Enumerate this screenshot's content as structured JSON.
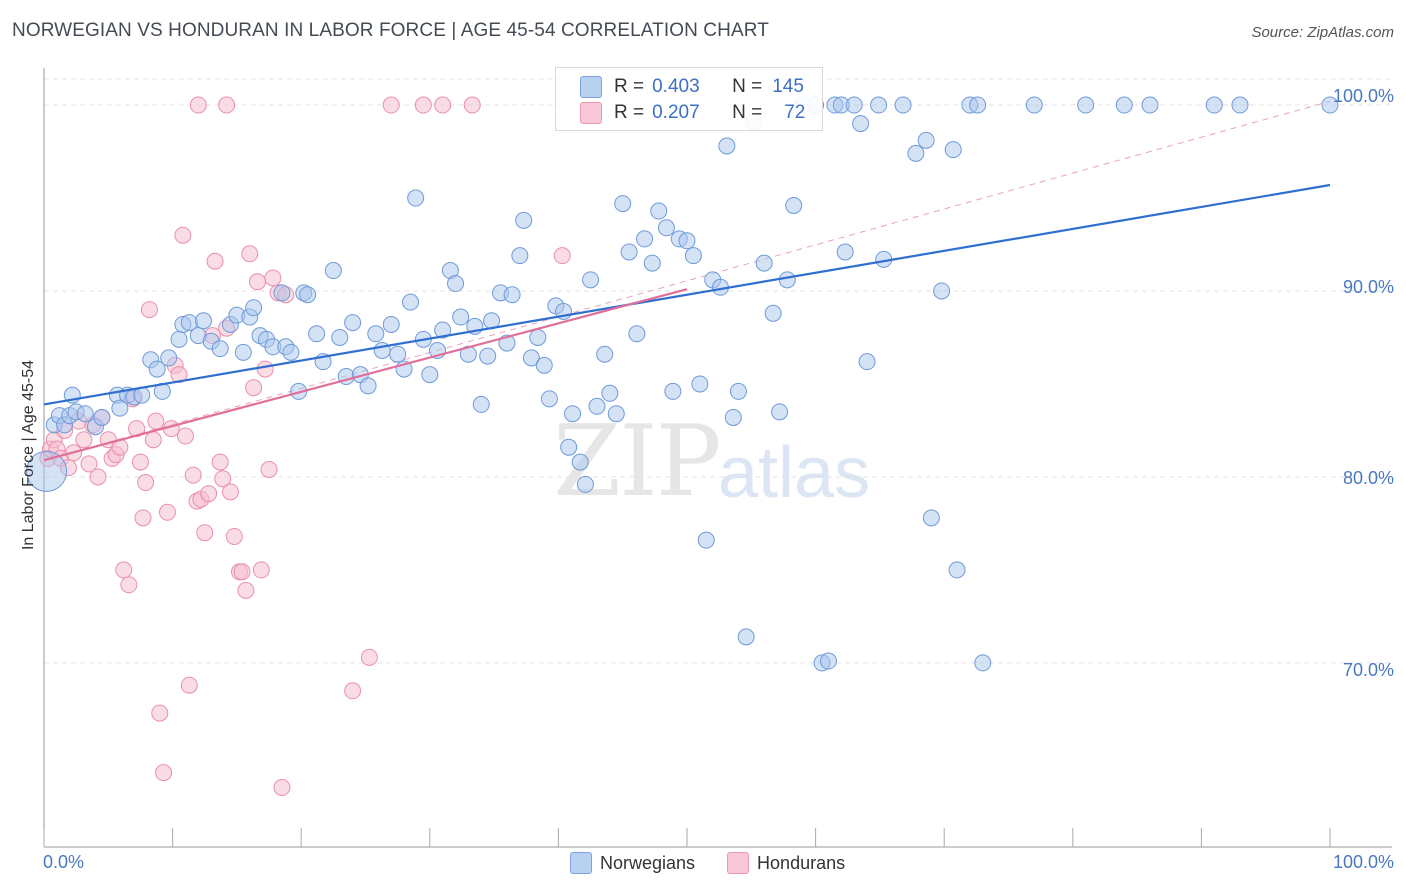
{
  "title": "NORWEGIAN VS HONDURAN IN LABOR FORCE | AGE 45-54 CORRELATION CHART",
  "source": "Source: ZipAtlas.com",
  "watermark": {
    "zip": "ZIP",
    "atlas": "atlas"
  },
  "colors": {
    "norwegian_fill": "#a9c6ee",
    "norwegian_stroke": "#6f9ad8",
    "norwegian_line": "#2f6fd0",
    "honduran_fill": "#f6bfd0",
    "honduran_stroke": "#ea8fae",
    "honduran_line": "#e0709a",
    "diag": "#e8a3ba",
    "grid": "#e3e3e3",
    "tick_text": "#4a78c0"
  },
  "legend": {
    "rows": [
      {
        "r_label": "R =",
        "r_value": "0.403",
        "n_label": "N =",
        "n_value": "145"
      },
      {
        "r_label": "R =",
        "r_value": "0.207",
        "n_label": "N =",
        "n_value": "72"
      }
    ],
    "bottom": [
      "Norwegians",
      "Hondurans"
    ]
  },
  "chart_data": {
    "type": "scatter",
    "title": "NORWEGIAN VS HONDURAN IN LABOR FORCE | AGE 45-54 CORRELATION CHART",
    "xlabel": "",
    "ylabel": "In Labor Force | Age 45-54",
    "xlim": [
      0,
      100
    ],
    "ylim": [
      60.1,
      101.4
    ],
    "x_tick_labels": [
      "0.0%",
      "100.0%"
    ],
    "y_ticks": [
      70,
      80,
      90,
      100
    ],
    "y_tick_labels": [
      "70.0%",
      "80.0%",
      "90.0%",
      "100.0%"
    ],
    "grid": true,
    "legend_placement": "top-center",
    "series": [
      {
        "name": "Norwegians",
        "trend": {
          "x": [
            0,
            100
          ],
          "y": [
            83.9,
            95.7
          ]
        },
        "points": [
          [
            0.2,
            80.3
          ],
          [
            0.8,
            82.8
          ],
          [
            1.2,
            83.3
          ],
          [
            1.6,
            82.8
          ],
          [
            2.0,
            83.3
          ],
          [
            2.2,
            84.4
          ],
          [
            2.5,
            83.5
          ],
          [
            3.2,
            83.4
          ],
          [
            4.0,
            82.7
          ],
          [
            4.5,
            83.2
          ],
          [
            5.7,
            84.4
          ],
          [
            5.9,
            83.7
          ],
          [
            6.5,
            84.4
          ],
          [
            7.0,
            84.3
          ],
          [
            7.6,
            84.4
          ],
          [
            8.3,
            86.3
          ],
          [
            8.8,
            85.8
          ],
          [
            9.2,
            84.6
          ],
          [
            9.7,
            86.4
          ],
          [
            10.5,
            87.4
          ],
          [
            10.8,
            88.2
          ],
          [
            11.3,
            88.3
          ],
          [
            12.0,
            87.6
          ],
          [
            12.4,
            88.4
          ],
          [
            13.0,
            87.3
          ],
          [
            13.7,
            86.9
          ],
          [
            14.5,
            88.2
          ],
          [
            15.0,
            88.7
          ],
          [
            15.5,
            86.7
          ],
          [
            16.0,
            88.6
          ],
          [
            16.3,
            89.1
          ],
          [
            16.8,
            87.6
          ],
          [
            17.3,
            87.4
          ],
          [
            17.8,
            87.0
          ],
          [
            18.5,
            89.9
          ],
          [
            18.8,
            87.0
          ],
          [
            19.2,
            86.7
          ],
          [
            19.8,
            84.6
          ],
          [
            20.2,
            89.9
          ],
          [
            20.5,
            89.8
          ],
          [
            21.2,
            87.7
          ],
          [
            21.7,
            86.2
          ],
          [
            22.5,
            91.1
          ],
          [
            23.0,
            87.5
          ],
          [
            23.5,
            85.4
          ],
          [
            24.0,
            88.3
          ],
          [
            24.6,
            85.5
          ],
          [
            25.2,
            84.9
          ],
          [
            25.8,
            87.7
          ],
          [
            26.3,
            86.8
          ],
          [
            27.0,
            88.2
          ],
          [
            27.5,
            86.6
          ],
          [
            28.0,
            85.8
          ],
          [
            28.5,
            89.4
          ],
          [
            28.9,
            95.0
          ],
          [
            29.5,
            87.4
          ],
          [
            30.0,
            85.5
          ],
          [
            30.6,
            86.8
          ],
          [
            31.0,
            87.9
          ],
          [
            31.6,
            91.1
          ],
          [
            32.0,
            90.4
          ],
          [
            32.4,
            88.6
          ],
          [
            33.0,
            86.6
          ],
          [
            33.5,
            88.1
          ],
          [
            34.0,
            83.9
          ],
          [
            34.5,
            86.5
          ],
          [
            34.8,
            88.4
          ],
          [
            35.5,
            89.9
          ],
          [
            36.0,
            87.2
          ],
          [
            36.4,
            89.8
          ],
          [
            37.0,
            91.9
          ],
          [
            37.3,
            93.8
          ],
          [
            37.9,
            86.4
          ],
          [
            38.4,
            87.5
          ],
          [
            38.9,
            86.0
          ],
          [
            39.3,
            84.2
          ],
          [
            39.8,
            89.2
          ],
          [
            40.4,
            88.9
          ],
          [
            40.8,
            81.6
          ],
          [
            41.1,
            83.4
          ],
          [
            41.7,
            80.8
          ],
          [
            42.1,
            79.6
          ],
          [
            42.5,
            90.6
          ],
          [
            43.0,
            83.8
          ],
          [
            43.6,
            86.6
          ],
          [
            44.0,
            84.5
          ],
          [
            44.5,
            83.4
          ],
          [
            45.0,
            94.7
          ],
          [
            45.5,
            92.1
          ],
          [
            46.1,
            87.7
          ],
          [
            46.7,
            92.8
          ],
          [
            47.3,
            91.5
          ],
          [
            47.8,
            94.3
          ],
          [
            48.4,
            93.4
          ],
          [
            48.9,
            84.6
          ],
          [
            49.4,
            92.8
          ],
          [
            50.0,
            92.7
          ],
          [
            50.5,
            91.9
          ],
          [
            51.0,
            85.0
          ],
          [
            51.5,
            76.6
          ],
          [
            52.0,
            90.6
          ],
          [
            52.6,
            90.2
          ],
          [
            53.1,
            97.8
          ],
          [
            53.6,
            83.2
          ],
          [
            54.0,
            84.6
          ],
          [
            54.6,
            71.4
          ],
          [
            55.2,
            99.1
          ],
          [
            56.0,
            91.5
          ],
          [
            56.7,
            88.8
          ],
          [
            57.2,
            83.5
          ],
          [
            57.8,
            90.6
          ],
          [
            58.3,
            94.6
          ],
          [
            59.0,
            100.0
          ],
          [
            60.0,
            100.0
          ],
          [
            60.5,
            70.0
          ],
          [
            61.0,
            70.1
          ],
          [
            61.5,
            100.0
          ],
          [
            62.0,
            100.0
          ],
          [
            62.3,
            92.1
          ],
          [
            63.0,
            100.0
          ],
          [
            63.5,
            99.0
          ],
          [
            64.0,
            86.2
          ],
          [
            64.9,
            100.0
          ],
          [
            65.3,
            91.7
          ],
          [
            66.8,
            100.0
          ],
          [
            67.8,
            97.4
          ],
          [
            68.6,
            98.1
          ],
          [
            69.0,
            77.8
          ],
          [
            69.8,
            90.0
          ],
          [
            70.7,
            97.6
          ],
          [
            71.0,
            75.0
          ],
          [
            72.0,
            100.0
          ],
          [
            72.6,
            100.0
          ],
          [
            73.0,
            70.0
          ],
          [
            77.0,
            100.0
          ],
          [
            81.0,
            100.0
          ],
          [
            84.0,
            100.0
          ],
          [
            86.0,
            100.0
          ],
          [
            91.0,
            100.0
          ],
          [
            93.0,
            100.0
          ],
          [
            100.0,
            100.0
          ]
        ]
      },
      {
        "name": "Hondurans",
        "trend": {
          "x": [
            0,
            50
          ],
          "y": [
            80.9,
            90.1
          ]
        },
        "points": [
          [
            0.3,
            81.0
          ],
          [
            0.5,
            81.5
          ],
          [
            0.8,
            82.0
          ],
          [
            1.0,
            81.5
          ],
          [
            1.3,
            81.0
          ],
          [
            1.6,
            82.5
          ],
          [
            1.9,
            80.5
          ],
          [
            2.3,
            81.3
          ],
          [
            2.7,
            83.0
          ],
          [
            3.1,
            82.0
          ],
          [
            3.5,
            80.7
          ],
          [
            3.8,
            82.8
          ],
          [
            4.2,
            80.0
          ],
          [
            4.5,
            83.2
          ],
          [
            5.0,
            82.0
          ],
          [
            5.3,
            81.0
          ],
          [
            5.6,
            81.2
          ],
          [
            5.9,
            81.6
          ],
          [
            6.2,
            75.0
          ],
          [
            6.6,
            74.2
          ],
          [
            6.9,
            84.2
          ],
          [
            7.2,
            82.6
          ],
          [
            7.5,
            80.8
          ],
          [
            7.7,
            77.8
          ],
          [
            7.9,
            79.7
          ],
          [
            8.2,
            89.0
          ],
          [
            8.5,
            82.0
          ],
          [
            8.7,
            83.0
          ],
          [
            9.0,
            67.3
          ],
          [
            9.3,
            64.1
          ],
          [
            9.6,
            78.1
          ],
          [
            9.9,
            82.6
          ],
          [
            10.2,
            86.0
          ],
          [
            10.5,
            85.5
          ],
          [
            10.8,
            93.0
          ],
          [
            11.0,
            82.2
          ],
          [
            11.3,
            68.8
          ],
          [
            11.6,
            80.1
          ],
          [
            11.9,
            78.7
          ],
          [
            12.2,
            78.8
          ],
          [
            12.5,
            77.0
          ],
          [
            12.8,
            79.1
          ],
          [
            13.1,
            87.6
          ],
          [
            13.3,
            91.6
          ],
          [
            13.7,
            80.8
          ],
          [
            13.9,
            79.9
          ],
          [
            14.2,
            88.0
          ],
          [
            14.5,
            79.2
          ],
          [
            14.8,
            76.8
          ],
          [
            15.2,
            74.9
          ],
          [
            15.4,
            74.9
          ],
          [
            15.7,
            73.9
          ],
          [
            16.0,
            92.0
          ],
          [
            16.3,
            84.8
          ],
          [
            16.6,
            90.5
          ],
          [
            16.9,
            75.0
          ],
          [
            17.2,
            85.8
          ],
          [
            17.5,
            80.4
          ],
          [
            17.8,
            90.7
          ],
          [
            18.2,
            89.9
          ],
          [
            18.5,
            63.3
          ],
          [
            18.8,
            89.8
          ],
          [
            24.0,
            68.5
          ],
          [
            25.3,
            70.3
          ],
          [
            27.0,
            100.0
          ],
          [
            29.5,
            100.0
          ],
          [
            31.0,
            100.0
          ],
          [
            33.3,
            100.0
          ],
          [
            40.3,
            91.9
          ],
          [
            12.0,
            100.0
          ],
          [
            14.2,
            100.0
          ]
        ]
      }
    ]
  }
}
